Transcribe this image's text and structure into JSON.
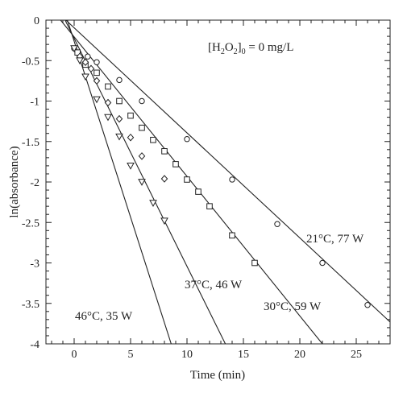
{
  "chart_data": {
    "type": "scatter",
    "xlabel": "Time (min)",
    "ylabel": "ln(absorbance)",
    "xlim": [
      -2.5,
      28
    ],
    "ylim": [
      -4,
      0
    ],
    "xticks": [
      0,
      5,
      10,
      15,
      20,
      25
    ],
    "xtick_labels": [
      "0",
      "5",
      "10",
      "15",
      "20",
      "25"
    ],
    "yticks": [
      0,
      -0.5,
      -1,
      -1.5,
      -2,
      -2.5,
      -3,
      -3.5,
      -4
    ],
    "ytick_labels": [
      "0",
      "-0.5",
      "-1",
      "-1.5",
      "-2",
      "-2.5",
      "-3",
      "-3.5",
      "-4"
    ],
    "annotation": {
      "prefix": "[H",
      "sub1": "2",
      "mid": "O",
      "sub2": "2",
      "close": "]",
      "sub3": "0",
      "suffix": " = 0 mg/L"
    },
    "series": [
      {
        "name": "21°C, 77 W",
        "marker": "circle",
        "x": [
          0,
          1.2,
          2,
          4,
          6,
          10,
          14,
          18,
          22,
          26
        ],
        "y": [
          -0.35,
          -0.45,
          -0.52,
          -0.74,
          -1.0,
          -1.47,
          -1.97,
          -2.52,
          -3.0,
          -3.52
        ],
        "fit": {
          "x": [
            -1.5,
            28
          ],
          "y": [
            0.1,
            -3.73
          ]
        }
      },
      {
        "name": "30°C, 59 W",
        "marker": "square",
        "x": [
          0.3,
          1,
          2,
          3,
          4,
          5,
          6,
          7,
          8,
          9,
          10,
          11,
          12,
          14,
          16
        ],
        "y": [
          -0.4,
          -0.55,
          -0.65,
          -0.82,
          -1.0,
          -1.18,
          -1.33,
          -1.48,
          -1.62,
          -1.78,
          -1.97,
          -2.12,
          -2.3,
          -2.66,
          -3.0
        ],
        "fit": {
          "x": [
            -1.2,
            22
          ],
          "y": [
            0.0,
            -4.0
          ]
        }
      },
      {
        "name": "37°C, 46 W",
        "marker": "diamond",
        "x": [
          0.5,
          1,
          1.5,
          2,
          3,
          4,
          5,
          6,
          8
        ],
        "y": [
          -0.45,
          -0.52,
          -0.6,
          -0.75,
          -1.02,
          -1.22,
          -1.45,
          -1.68,
          -1.96
        ],
        "fit": {
          "x": [
            -0.8,
            13.4
          ],
          "y": [
            0.0,
            -4.0
          ]
        }
      },
      {
        "name": "46°C, 35 W",
        "marker": "triangle",
        "x": [
          0,
          0.5,
          1,
          2,
          3,
          4,
          5,
          6,
          7,
          8
        ],
        "y": [
          -0.35,
          -0.5,
          -0.7,
          -0.98,
          -1.2,
          -1.44,
          -1.8,
          -2.0,
          -2.26,
          -2.48
        ],
        "fit": {
          "x": [
            -0.6,
            8.6
          ],
          "y": [
            0.0,
            -4.0
          ]
        }
      }
    ]
  }
}
